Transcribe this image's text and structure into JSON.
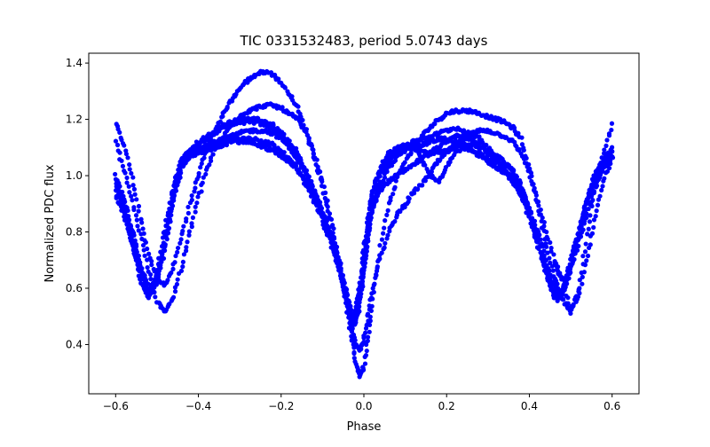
{
  "chart_data": {
    "type": "scatter",
    "title": "TIC 0331532483, period 5.0743 days",
    "xlabel": "Phase",
    "ylabel": "Normalized PDC flux",
    "xlim": [
      -0.665,
      0.665
    ],
    "ylim": [
      0.225,
      1.435
    ],
    "xticks": [
      -0.6,
      -0.4,
      -0.2,
      0.0,
      0.2,
      0.4,
      0.6
    ],
    "xtick_labels": [
      "−0.6",
      "−0.4",
      "−0.2",
      "0.0",
      "0.2",
      "0.4",
      "0.6"
    ],
    "yticks": [
      0.4,
      0.6,
      0.8,
      1.0,
      1.2,
      1.4
    ],
    "ytick_labels": [
      "0.4",
      "0.6",
      "0.8",
      "1.0",
      "1.2",
      "1.4"
    ],
    "grid": false,
    "marker_color": "#0000ff",
    "series": [
      {
        "x": [
          -0.6,
          -0.58,
          -0.56,
          -0.54,
          -0.52,
          -0.5,
          -0.48,
          -0.46,
          -0.44,
          -0.42,
          -0.4,
          -0.38,
          -0.36,
          -0.34,
          -0.32,
          -0.3,
          -0.28,
          -0.26,
          -0.24,
          -0.22,
          -0.2,
          -0.18,
          -0.16,
          -0.14,
          -0.12,
          -0.1,
          -0.08,
          -0.06,
          -0.04,
          -0.03,
          -0.02,
          -0.01,
          0.0,
          0.01,
          0.02,
          0.04,
          0.06,
          0.08,
          0.1,
          0.12,
          0.14,
          0.16,
          0.18,
          0.2,
          0.22,
          0.24,
          0.26,
          0.28,
          0.3,
          0.32,
          0.34,
          0.36,
          0.38,
          0.4,
          0.42,
          0.44,
          0.46,
          0.47,
          0.48,
          0.5,
          0.52,
          0.54,
          0.56,
          0.58,
          0.6
        ],
        "y": [
          0.95,
          0.88,
          0.76,
          0.64,
          0.57,
          0.66,
          0.82,
          0.96,
          1.06,
          1.09,
          1.11,
          1.13,
          1.15,
          1.17,
          1.18,
          1.19,
          1.19,
          1.19,
          1.18,
          1.17,
          1.14,
          1.1,
          1.06,
          1.0,
          0.93,
          0.86,
          0.78,
          0.68,
          0.55,
          0.49,
          0.52,
          0.62,
          0.74,
          0.85,
          0.95,
          1.02,
          1.06,
          1.09,
          1.1,
          1.1,
          1.09,
          1.08,
          1.08,
          1.09,
          1.1,
          1.11,
          1.11,
          1.1,
          1.09,
          1.07,
          1.05,
          1.02,
          0.96,
          0.88,
          0.78,
          0.66,
          0.58,
          0.57,
          0.6,
          0.7,
          0.81,
          0.92,
          1.01,
          1.06,
          1.09
        ]
      },
      {
        "x": [
          -0.6,
          -0.58,
          -0.56,
          -0.54,
          -0.52,
          -0.5,
          -0.48,
          -0.46,
          -0.44,
          -0.42,
          -0.4,
          -0.38,
          -0.36,
          -0.34,
          -0.32,
          -0.3,
          -0.28,
          -0.26,
          -0.24,
          -0.22,
          -0.2,
          -0.18,
          -0.16,
          -0.14,
          -0.12,
          -0.1,
          -0.08,
          -0.06,
          -0.04,
          -0.03,
          -0.02,
          -0.01,
          0.0,
          0.01,
          0.02,
          0.04,
          0.06,
          0.08,
          0.1,
          0.12,
          0.14,
          0.16,
          0.18,
          0.2,
          0.22,
          0.24,
          0.26,
          0.28,
          0.3,
          0.32,
          0.34,
          0.36,
          0.38,
          0.4,
          0.42,
          0.44,
          0.46,
          0.47,
          0.48,
          0.5,
          0.52,
          0.54,
          0.56,
          0.58,
          0.6
        ],
        "y": [
          1.18,
          1.11,
          0.99,
          0.85,
          0.72,
          0.63,
          0.61,
          0.68,
          0.79,
          0.9,
          1.0,
          1.09,
          1.16,
          1.22,
          1.27,
          1.31,
          1.34,
          1.36,
          1.37,
          1.36,
          1.33,
          1.29,
          1.24,
          1.16,
          1.07,
          0.96,
          0.84,
          0.69,
          0.52,
          0.42,
          0.34,
          0.29,
          0.32,
          0.43,
          0.56,
          0.75,
          0.9,
          0.99,
          1.05,
          1.1,
          1.14,
          1.17,
          1.2,
          1.22,
          1.23,
          1.23,
          1.23,
          1.22,
          1.21,
          1.2,
          1.19,
          1.17,
          1.13,
          1.03,
          0.9,
          0.76,
          0.64,
          0.59,
          0.56,
          0.52,
          0.6,
          0.79,
          0.96,
          1.08,
          1.18
        ]
      },
      {
        "x": [
          -0.6,
          -0.58,
          -0.56,
          -0.54,
          -0.52,
          -0.5,
          -0.48,
          -0.46,
          -0.44,
          -0.42,
          -0.4,
          -0.38,
          -0.36,
          -0.34,
          -0.32,
          -0.3,
          -0.28,
          -0.26,
          -0.24,
          -0.22,
          -0.2,
          -0.18,
          -0.16,
          -0.14,
          -0.12,
          -0.1,
          -0.08,
          -0.06,
          -0.04,
          -0.03,
          -0.02,
          -0.01,
          0.0,
          0.01,
          0.02,
          0.04,
          0.06,
          0.08,
          0.1,
          0.12,
          0.14,
          0.16,
          0.18,
          0.2,
          0.22,
          0.24,
          0.26,
          0.28,
          0.3,
          0.32,
          0.34,
          0.36,
          0.38,
          0.4,
          0.42,
          0.44,
          0.46,
          0.47,
          0.48,
          0.5,
          0.52,
          0.54,
          0.56,
          0.58,
          0.6
        ],
        "y": [
          1.12,
          1.02,
          0.91,
          0.79,
          0.66,
          0.55,
          0.52,
          0.57,
          0.68,
          0.8,
          0.92,
          1.02,
          1.09,
          1.14,
          1.18,
          1.21,
          1.23,
          1.24,
          1.25,
          1.25,
          1.24,
          1.22,
          1.2,
          1.15,
          1.08,
          0.98,
          0.85,
          0.7,
          0.55,
          0.46,
          0.4,
          0.38,
          0.42,
          0.5,
          0.6,
          0.71,
          0.8,
          0.86,
          0.9,
          0.94,
          0.97,
          1.01,
          1.05,
          1.08,
          1.11,
          1.13,
          1.15,
          1.16,
          1.16,
          1.15,
          1.14,
          1.12,
          1.08,
          1.01,
          0.91,
          0.8,
          0.7,
          0.66,
          0.63,
          0.51,
          0.58,
          0.72,
          0.86,
          0.98,
          1.07
        ]
      },
      {
        "x": [
          -0.6,
          -0.58,
          -0.56,
          -0.54,
          -0.52,
          -0.5,
          -0.48,
          -0.46,
          -0.44,
          -0.42,
          -0.4,
          -0.38,
          -0.36,
          -0.34,
          -0.32,
          -0.3,
          -0.28,
          -0.26,
          -0.24,
          -0.22,
          -0.2,
          -0.18,
          -0.16,
          -0.14,
          -0.12,
          -0.1,
          -0.08,
          -0.06,
          -0.04,
          -0.03,
          -0.02,
          -0.01,
          0.0,
          0.01,
          0.02,
          0.04,
          0.06,
          0.08,
          0.1,
          0.12,
          0.14,
          0.16,
          0.18,
          0.2,
          0.22,
          0.24,
          0.26,
          0.28,
          0.3,
          0.32,
          0.34,
          0.36,
          0.38,
          0.4,
          0.42,
          0.44,
          0.46,
          0.47,
          0.48,
          0.5,
          0.52,
          0.54,
          0.56,
          0.58,
          0.6
        ],
        "y": [
          1.0,
          0.9,
          0.8,
          0.68,
          0.59,
          0.61,
          0.75,
          0.91,
          1.03,
          1.08,
          1.1,
          1.11,
          1.12,
          1.13,
          1.14,
          1.15,
          1.16,
          1.16,
          1.16,
          1.15,
          1.13,
          1.1,
          1.06,
          1.01,
          0.95,
          0.88,
          0.8,
          0.7,
          0.58,
          0.51,
          0.5,
          0.57,
          0.68,
          0.79,
          0.88,
          0.95,
          0.98,
          1.0,
          1.02,
          1.04,
          1.06,
          1.08,
          1.1,
          1.12,
          1.14,
          1.14,
          1.13,
          1.11,
          1.08,
          1.05,
          1.02,
          0.99,
          0.95,
          0.89,
          0.8,
          0.7,
          0.61,
          0.58,
          0.58,
          0.66,
          0.77,
          0.87,
          0.96,
          1.03,
          1.06
        ]
      },
      {
        "x": [
          -0.6,
          -0.58,
          -0.56,
          -0.54,
          -0.52,
          -0.5,
          -0.48,
          -0.46,
          -0.44,
          -0.42,
          -0.4,
          -0.38,
          -0.36,
          -0.34,
          -0.32,
          -0.3,
          -0.28,
          -0.26,
          -0.24,
          -0.22,
          -0.2,
          -0.18,
          -0.16,
          -0.14,
          -0.12,
          -0.1,
          -0.08,
          -0.06,
          -0.04,
          -0.03,
          -0.02,
          -0.01,
          0.0,
          0.01,
          0.02,
          0.04,
          0.06,
          0.08,
          0.1,
          0.12,
          0.14,
          0.16,
          0.18,
          0.2,
          0.22,
          0.24,
          0.26,
          0.28,
          0.3,
          0.32,
          0.34,
          0.36,
          0.38,
          0.4,
          0.42,
          0.44,
          0.46,
          0.47,
          0.48,
          0.5,
          0.52,
          0.54,
          0.56,
          0.58,
          0.6
        ],
        "y": [
          0.93,
          0.86,
          0.75,
          0.63,
          0.56,
          0.64,
          0.8,
          0.95,
          1.05,
          1.08,
          1.09,
          1.1,
          1.11,
          1.12,
          1.13,
          1.13,
          1.13,
          1.13,
          1.12,
          1.11,
          1.09,
          1.06,
          1.02,
          0.97,
          0.91,
          0.84,
          0.76,
          0.66,
          0.54,
          0.48,
          0.47,
          0.54,
          0.66,
          0.78,
          0.89,
          1.0,
          1.05,
          1.08,
          1.1,
          1.12,
          1.13,
          1.14,
          1.15,
          1.16,
          1.17,
          1.16,
          1.15,
          1.13,
          1.1,
          1.06,
          1.02,
          0.99,
          0.94,
          0.86,
          0.76,
          0.66,
          0.58,
          0.56,
          0.58,
          0.68,
          0.8,
          0.91,
          0.99,
          1.05,
          1.1
        ]
      },
      {
        "x": [
          -0.6,
          -0.58,
          -0.56,
          -0.54,
          -0.52,
          -0.5,
          -0.48,
          -0.46,
          -0.44,
          -0.42,
          -0.4,
          -0.38,
          -0.36,
          -0.34,
          -0.32,
          -0.3,
          -0.28,
          -0.26,
          -0.24,
          -0.22,
          -0.2,
          -0.18,
          -0.16,
          -0.14,
          -0.12,
          -0.1,
          -0.08,
          -0.06,
          -0.04,
          -0.03,
          -0.02,
          -0.01,
          0.0,
          0.01,
          0.02,
          0.04,
          0.06,
          0.08,
          0.1,
          0.12,
          0.14,
          0.16,
          0.18,
          0.2,
          0.22,
          0.24,
          0.26,
          0.28,
          0.3,
          0.32,
          0.34,
          0.36,
          0.38,
          0.4,
          0.42,
          0.44,
          0.46,
          0.47,
          0.48,
          0.5,
          0.52,
          0.54,
          0.56,
          0.58,
          0.6
        ],
        "y": [
          0.97,
          0.89,
          0.78,
          0.66,
          0.58,
          0.63,
          0.78,
          0.93,
          1.04,
          1.09,
          1.12,
          1.14,
          1.16,
          1.18,
          1.19,
          1.2,
          1.2,
          1.2,
          1.19,
          1.18,
          1.15,
          1.12,
          1.08,
          1.02,
          0.94,
          0.87,
          0.79,
          0.69,
          0.56,
          0.5,
          0.51,
          0.6,
          0.72,
          0.84,
          0.94,
          1.03,
          1.08,
          1.1,
          1.11,
          1.1,
          1.06,
          1.0,
          0.98,
          1.03,
          1.08,
          1.1,
          1.09,
          1.07,
          1.05,
          1.03,
          1.01,
          0.98,
          0.93,
          0.85,
          0.75,
          0.65,
          0.57,
          0.56,
          0.59,
          0.69,
          0.81,
          0.92,
          1.0,
          1.05,
          1.08
        ]
      },
      {
        "x": [
          -0.6,
          -0.58,
          -0.56,
          -0.54,
          -0.52,
          -0.5,
          -0.48,
          -0.46,
          -0.44,
          -0.42,
          -0.4,
          -0.38,
          -0.36,
          -0.34,
          -0.32,
          -0.3,
          -0.28,
          -0.26,
          -0.24,
          -0.22,
          -0.2,
          -0.18,
          -0.16,
          -0.14,
          -0.12,
          -0.1,
          -0.08,
          -0.06,
          -0.04,
          -0.03,
          -0.02,
          -0.01,
          0.0,
          0.01,
          0.02,
          0.04,
          0.06,
          0.08,
          0.1,
          0.12,
          0.14,
          0.16,
          0.18,
          0.2,
          0.22,
          0.24,
          0.26,
          0.28,
          0.3,
          0.32,
          0.34,
          0.36,
          0.38,
          0.4,
          0.42,
          0.44,
          0.46,
          0.47,
          0.48,
          0.5,
          0.52,
          0.54,
          0.56,
          0.58,
          0.6
        ],
        "y": [
          0.99,
          0.92,
          0.81,
          0.68,
          0.6,
          0.62,
          0.76,
          0.92,
          1.03,
          1.07,
          1.08,
          1.09,
          1.1,
          1.11,
          1.12,
          1.12,
          1.12,
          1.11,
          1.1,
          1.09,
          1.07,
          1.05,
          1.02,
          0.98,
          0.93,
          0.86,
          0.78,
          0.67,
          0.55,
          0.49,
          0.49,
          0.56,
          0.67,
          0.78,
          0.88,
          0.97,
          1.03,
          1.07,
          1.09,
          1.1,
          1.11,
          1.12,
          1.13,
          1.13,
          1.12,
          1.11,
          1.09,
          1.08,
          1.06,
          1.05,
          1.04,
          1.02,
          0.97,
          0.88,
          0.78,
          0.67,
          0.59,
          0.57,
          0.59,
          0.67,
          0.79,
          0.9,
          0.98,
          1.04,
          1.07
        ]
      }
    ]
  }
}
